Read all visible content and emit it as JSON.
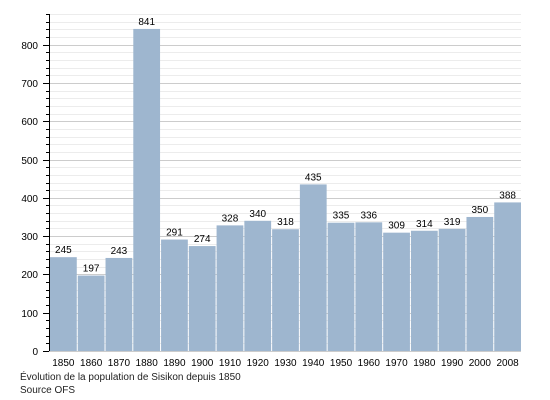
{
  "chart_data": {
    "type": "bar",
    "categories": [
      "1850",
      "1860",
      "1870",
      "1880",
      "1890",
      "1900",
      "1910",
      "1920",
      "1930",
      "1940",
      "1950",
      "1960",
      "1970",
      "1980",
      "1990",
      "2000",
      "2008"
    ],
    "values": [
      245,
      197,
      243,
      841,
      291,
      274,
      328,
      340,
      318,
      435,
      335,
      336,
      309,
      314,
      319,
      350,
      388
    ],
    "y_ticks": [
      0,
      100,
      200,
      300,
      400,
      500,
      600,
      700,
      800
    ],
    "ylim": [
      0,
      880
    ],
    "grid": true,
    "bar_color": "#9eb6cf",
    "grid_color": "#cccccc"
  },
  "caption": {
    "line1": "Évolution de la population de Sisikon depuis 1850",
    "line2": "Source OFS"
  }
}
